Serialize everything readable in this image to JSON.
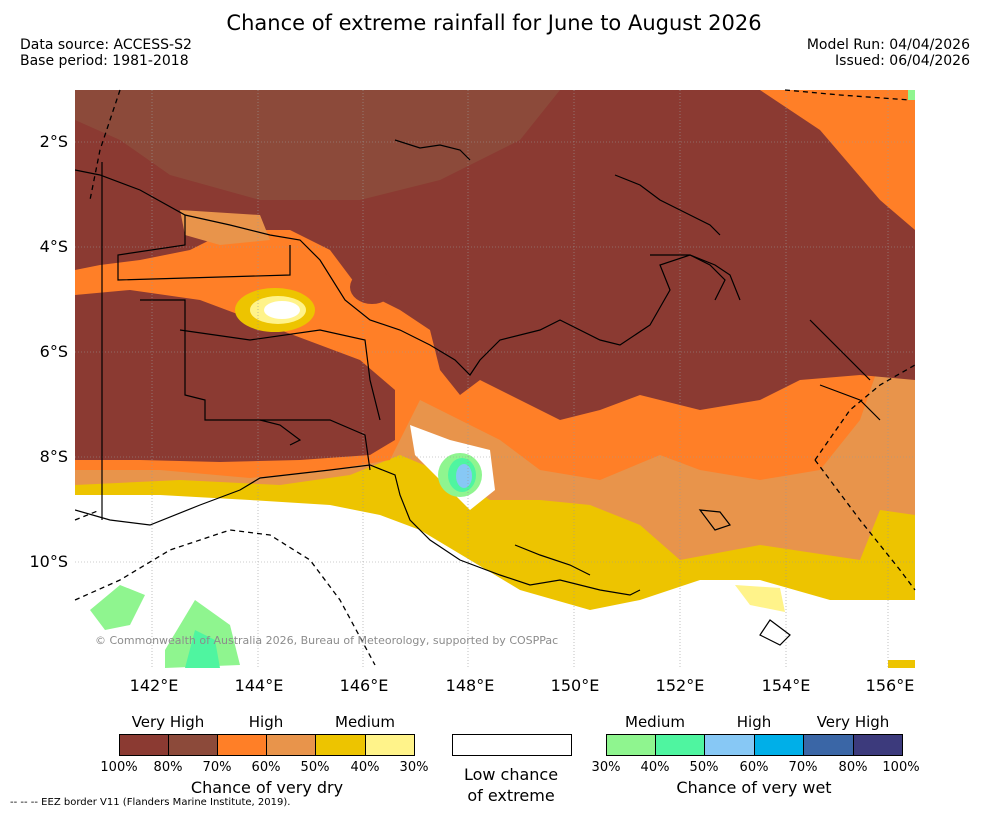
{
  "title": "Chance of extreme rainfall for June to August 2026",
  "data_source": "Data source: ACCESS-S2",
  "base_period": "Base period: 1981-2018",
  "model_run": "Model Run: 04/04/2026",
  "issued": "Issued: 06/04/2026",
  "map": {
    "lat_labels": [
      "2°S",
      "4°S",
      "6°S",
      "8°S",
      "10°S"
    ],
    "lon_labels": [
      "142°E",
      "144°E",
      "146°E",
      "148°E",
      "150°E",
      "152°E",
      "154°E",
      "156°E"
    ],
    "copyright": "© Commonwealth of Australia 2026, Bureau of Meteorology, supported by COSPPac",
    "colors": {
      "very_dry_100": "#8b3a32",
      "very_dry_80": "#8c4a3a",
      "very_dry_70": "#ff7f27",
      "very_dry_60": "#e8944b",
      "very_dry_50": "#edc400",
      "very_dry_40": "#fff38a",
      "low": "#ffffff",
      "wet_30": "#8ff58f",
      "wet_40": "#4ff5a0",
      "wet_50": "#87c8f5",
      "wet_60": "#00afe8",
      "wet_70": "#3a66a6",
      "wet_80": "#3c3a7c"
    }
  },
  "legend": {
    "dry": {
      "levels": [
        "Very High",
        "High",
        "Medium"
      ],
      "percents": [
        "100%",
        "80%",
        "70%",
        "60%",
        "50%",
        "40%",
        "30%"
      ],
      "caption": "Chance of very dry",
      "colors": [
        "#8b3a32",
        "#8c4a3a",
        "#ff7f27",
        "#e8944b",
        "#edc400",
        "#fff38a"
      ]
    },
    "low": {
      "caption_line1": "Low chance",
      "caption_line2": "of extreme",
      "color": "#ffffff"
    },
    "wet": {
      "levels": [
        "Medium",
        "High",
        "Very High"
      ],
      "percents": [
        "30%",
        "40%",
        "50%",
        "60%",
        "70%",
        "80%",
        "100%"
      ],
      "caption": "Chance of very wet",
      "colors": [
        "#8ff58f",
        "#4ff5a0",
        "#87c8f5",
        "#00afe8",
        "#3a66a6",
        "#3c3a7c"
      ]
    }
  },
  "footer": "--  --  -- EEZ border V11 (Flanders Marine Institute, 2019)."
}
